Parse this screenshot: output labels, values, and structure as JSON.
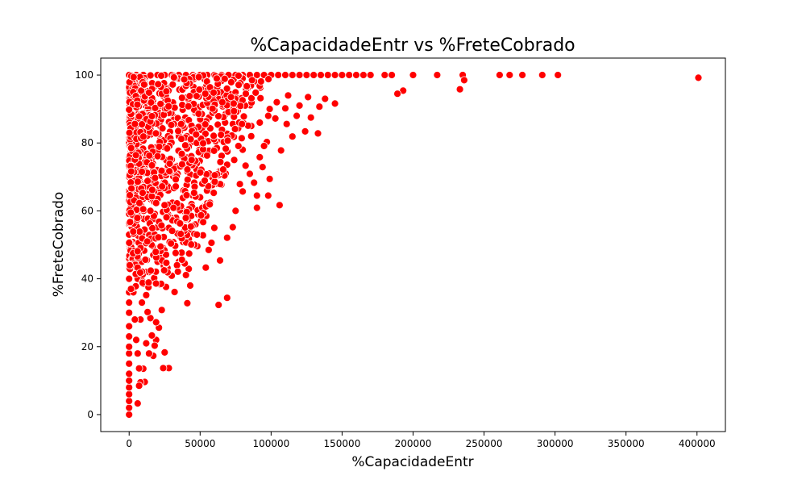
{
  "chart_data": {
    "type": "scatter",
    "title": "%CapacidadeEntr vs %FreteCobrado",
    "xlabel": "%CapacidadeEntr",
    "ylabel": "%FreteCobrado",
    "xlim": [
      -20000,
      420000
    ],
    "ylim": [
      -5,
      105
    ],
    "xticks": [
      0,
      50000,
      100000,
      150000,
      200000,
      250000,
      300000,
      350000,
      400000
    ],
    "yticks": [
      0,
      20,
      40,
      60,
      80,
      100
    ],
    "grid": false,
    "marker_color": "#ff0000",
    "marker_edge_color": "#ffffff",
    "points": [
      [
        0,
        0
      ],
      [
        0,
        2
      ],
      [
        0,
        4
      ],
      [
        0,
        6
      ],
      [
        0,
        8
      ],
      [
        0,
        10
      ],
      [
        0,
        12
      ],
      [
        0,
        15
      ],
      [
        0,
        18
      ],
      [
        0,
        20
      ],
      [
        0,
        23
      ],
      [
        0,
        26
      ],
      [
        0,
        30
      ],
      [
        0,
        33
      ],
      [
        0,
        36
      ],
      [
        0,
        40
      ],
      [
        0,
        43
      ],
      [
        0,
        46
      ],
      [
        0,
        50
      ],
      [
        0,
        53
      ],
      [
        0,
        56
      ],
      [
        0,
        60
      ],
      [
        0,
        63
      ],
      [
        0,
        66
      ],
      [
        0,
        70
      ],
      [
        0,
        73
      ],
      [
        0,
        76
      ],
      [
        0,
        80
      ],
      [
        0,
        83
      ],
      [
        0,
        86
      ],
      [
        0,
        90
      ],
      [
        0,
        93
      ],
      [
        0,
        96
      ],
      [
        0,
        100
      ],
      [
        5000,
        100
      ],
      [
        10000,
        100
      ],
      [
        15000,
        100
      ],
      [
        20000,
        100
      ],
      [
        25000,
        100
      ],
      [
        30000,
        100
      ],
      [
        35000,
        100
      ],
      [
        40000,
        100
      ],
      [
        45000,
        100
      ],
      [
        50000,
        100
      ],
      [
        55000,
        100
      ],
      [
        60000,
        100
      ],
      [
        65000,
        100
      ],
      [
        70000,
        100
      ],
      [
        75000,
        100
      ],
      [
        80000,
        100
      ],
      [
        85000,
        100
      ],
      [
        90000,
        100
      ],
      [
        95000,
        100
      ],
      [
        100000,
        100
      ],
      [
        105000,
        100
      ],
      [
        110000,
        100
      ],
      [
        115000,
        100
      ],
      [
        120000,
        100
      ],
      [
        125000,
        100
      ],
      [
        130000,
        100
      ],
      [
        135000,
        100
      ],
      [
        140000,
        100
      ],
      [
        145000,
        100
      ],
      [
        150000,
        100
      ],
      [
        155000,
        100
      ],
      [
        160000,
        100
      ],
      [
        165000,
        100
      ],
      [
        170000,
        100
      ],
      [
        180000,
        100
      ],
      [
        185000,
        100
      ],
      [
        200000,
        100
      ],
      [
        217000,
        100
      ],
      [
        235000,
        100
      ],
      [
        261000,
        100
      ],
      [
        268000,
        100
      ],
      [
        277000,
        100
      ],
      [
        291000,
        100
      ],
      [
        302000,
        100
      ],
      [
        401000,
        99.2
      ],
      [
        236000,
        98.5
      ],
      [
        233000,
        95.8
      ],
      [
        193000,
        95.4
      ],
      [
        189000,
        94.5
      ],
      [
        145000,
        91.6
      ],
      [
        134000,
        90.7
      ],
      [
        133000,
        82.8
      ],
      [
        124000,
        83.4
      ],
      [
        128000,
        87.5
      ],
      [
        110000,
        90.2
      ],
      [
        118000,
        88.0
      ],
      [
        115000,
        81.9
      ],
      [
        111000,
        85.6
      ],
      [
        107000,
        77.8
      ],
      [
        106000,
        61.7
      ],
      [
        103000,
        87.2
      ],
      [
        99000,
        90.0
      ],
      [
        99000,
        69.4
      ],
      [
        98000,
        64.5
      ],
      [
        97000,
        80.3
      ],
      [
        95000,
        79.1
      ],
      [
        94000,
        72.9
      ],
      [
        92000,
        75.8
      ],
      [
        90000,
        60.9
      ],
      [
        90000,
        64.5
      ],
      [
        88000,
        68.3
      ],
      [
        86000,
        85.0
      ],
      [
        85000,
        70.9
      ],
      [
        82000,
        73.3
      ],
      [
        80000,
        65.7
      ],
      [
        78000,
        67.9
      ],
      [
        75000,
        60.0
      ],
      [
        73000,
        55.2
      ],
      [
        69000,
        52.1
      ],
      [
        69000,
        34.4
      ],
      [
        63000,
        32.3
      ],
      [
        64000,
        45.4
      ],
      [
        60000,
        55.0
      ],
      [
        58000,
        50.6
      ],
      [
        56000,
        48.5
      ],
      [
        54000,
        43.3
      ],
      [
        52000,
        52.8
      ],
      [
        50000,
        60.4
      ],
      [
        48000,
        49.6
      ],
      [
        46000,
        50.0
      ],
      [
        43000,
        38.0
      ],
      [
        42000,
        42.9
      ],
      [
        41000,
        32.8
      ],
      [
        40000,
        41.1
      ],
      [
        38000,
        50.8
      ],
      [
        36000,
        52.4
      ],
      [
        35000,
        45.0
      ],
      [
        32000,
        36.1
      ],
      [
        30000,
        40.9
      ],
      [
        28000,
        13.7
      ],
      [
        24000,
        13.7
      ],
      [
        25000,
        18.3
      ],
      [
        23000,
        30.8
      ],
      [
        26000,
        37.6
      ],
      [
        27000,
        43.2
      ],
      [
        22000,
        38.3
      ],
      [
        21000,
        25.6
      ],
      [
        19000,
        27.2
      ],
      [
        19000,
        22.0
      ],
      [
        18000,
        20.3
      ],
      [
        16000,
        23.3
      ],
      [
        17000,
        17.3
      ],
      [
        14000,
        18.0
      ],
      [
        15000,
        28.4
      ],
      [
        12000,
        21.0
      ],
      [
        13000,
        30.2
      ],
      [
        12000,
        35.2
      ],
      [
        11000,
        9.6
      ],
      [
        10000,
        13.5
      ],
      [
        8000,
        9.5
      ],
      [
        7000,
        8.5
      ],
      [
        7000,
        13.6
      ],
      [
        6000,
        3.3
      ],
      [
        6000,
        18.0
      ],
      [
        5000,
        22.0
      ],
      [
        8000,
        28.0
      ],
      [
        9000,
        33.0
      ],
      [
        6000,
        40.0
      ],
      [
        9000,
        45.0
      ],
      [
        4000,
        28.0
      ],
      [
        3000,
        36.0
      ],
      [
        10000,
        38.5
      ],
      [
        14000,
        42.0
      ],
      [
        17000,
        47.0
      ],
      [
        20000,
        45.0
      ],
      [
        24000,
        49.0
      ],
      [
        28000,
        55.0
      ],
      [
        33000,
        58.0
      ],
      [
        38000,
        60.0
      ],
      [
        44000,
        62.0
      ],
      [
        50000,
        64.0
      ],
      [
        56000,
        66.0
      ],
      [
        62000,
        68.0
      ],
      [
        68000,
        71.0
      ],
      [
        74000,
        75.0
      ],
      [
        80000,
        78.0
      ],
      [
        86000,
        82.0
      ],
      [
        92000,
        86.0
      ],
      [
        98000,
        88.0
      ],
      [
        104000,
        92.0
      ],
      [
        112000,
        94.0
      ],
      [
        120000,
        91.0
      ],
      [
        126000,
        93.5
      ],
      [
        138000,
        93.0
      ]
    ],
    "cluster": {
      "x_max": 100000,
      "y_min": 35,
      "y_max": 100,
      "count": 900,
      "seed": 42
    }
  }
}
